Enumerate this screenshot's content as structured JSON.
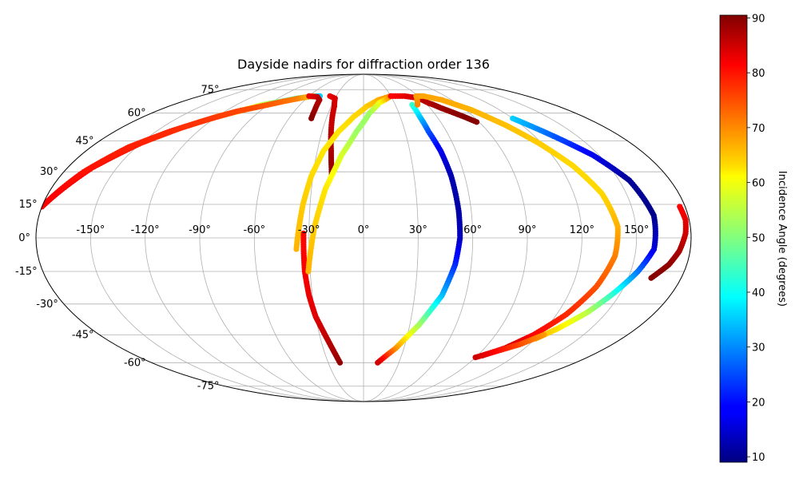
{
  "chart_data": {
    "type": "scatter",
    "projection": "mollweide",
    "title": "Dayside nadirs for diffraction order 136",
    "grid": true,
    "lon_ticks": [
      -150,
      -120,
      -90,
      -60,
      -30,
      0,
      30,
      60,
      90,
      120,
      150
    ],
    "lon_tick_labels": [
      "-150°",
      "-120°",
      "-90°",
      "-60°",
      "-30°",
      "0°",
      "30°",
      "60°",
      "90°",
      "120°",
      "150°"
    ],
    "lat_ticks": [
      75,
      60,
      45,
      30,
      15,
      0,
      -15,
      -30,
      -45,
      -60,
      -75
    ],
    "lat_tick_labels": [
      "75°",
      "60°",
      "45°",
      "30°",
      "15°",
      "0°",
      "-15°",
      "-30°",
      "-45°",
      "-60°",
      "-75°"
    ],
    "colorbar": {
      "label": "Incidence Angle (degrees)",
      "cmap": "jet",
      "vmin": 9,
      "vmax": 90.5,
      "ticks": [
        10,
        20,
        30,
        40,
        50,
        60,
        70,
        80,
        90
      ],
      "tick_labels": [
        "10",
        "20",
        "30",
        "40",
        "50",
        "60",
        "70",
        "80",
        "90"
      ]
    },
    "series": [
      {
        "lon": [
          -180,
          -165,
          -150,
          -135,
          -120,
          -105,
          -95,
          -82,
          -70,
          -60,
          -52,
          -48
        ],
        "lat": [
          14,
          32,
          44,
          52,
          58,
          62,
          65,
          67,
          69,
          70,
          70.5,
          70.5
        ],
        "incidence": [
          82,
          80,
          78,
          76,
          72,
          62,
          55,
          48,
          44,
          40,
          38,
          36
        ]
      },
      {
        "lon": [
          -180,
          -168,
          -155,
          -140,
          -125,
          -110,
          -95,
          -80,
          -68,
          -60,
          -55
        ],
        "lat": [
          14,
          30,
          42,
          50,
          56,
          61,
          64,
          67,
          69,
          70,
          70.5
        ],
        "incidence": [
          81,
          79,
          78,
          77,
          76,
          75,
          74,
          72,
          70,
          66,
          62
        ]
      },
      {
        "lon": [
          -60,
          -50,
          -45,
          -43,
          -42
        ],
        "lat": [
          70.5,
          70,
          68,
          62,
          57
        ],
        "incidence": [
          82,
          84,
          86,
          88,
          90
        ]
      },
      {
        "lon": [
          -37,
          -30,
          -27,
          -24,
          -21,
          -19
        ],
        "lat": [
          70.5,
          69,
          64,
          52,
          40,
          29
        ],
        "incidence": [
          82,
          83,
          84,
          85,
          87,
          89
        ]
      },
      {
        "lon": [
          -20,
          -25,
          -30,
          -32,
          -33,
          -33,
          -33
        ],
        "lat": [
          -60,
          -48,
          -36,
          -26,
          -15,
          -5,
          2
        ],
        "incidence": [
          89,
          86,
          83,
          82,
          81,
          80,
          80
        ]
      },
      {
        "lon": [
          -37,
          -34,
          -31,
          -26,
          -18,
          -8,
          3,
          15,
          30
        ],
        "lat": [
          -5,
          15,
          28,
          40,
          50,
          58,
          64,
          68,
          70.5
        ],
        "incidence": [
          66,
          64,
          63,
          62,
          62,
          63,
          64,
          66,
          70
        ]
      },
      {
        "lon": [
          -31,
          -27,
          -22,
          -14,
          -5,
          5,
          15,
          30
        ],
        "lat": [
          -15,
          5,
          22,
          38,
          50,
          60,
          66,
          70.5
        ],
        "incidence": [
          66,
          64,
          62,
          57,
          52,
          52,
          58,
          70
        ]
      },
      {
        "lon": [
          30,
          45,
          55,
          60,
          63,
          66,
          68,
          70,
          75,
          82,
          88
        ],
        "lat": [
          70.5,
          70.5,
          69.5,
          68,
          66,
          65,
          64,
          63,
          61,
          58,
          55
        ],
        "incidence": [
          80,
          82,
          84,
          86,
          86,
          87,
          88,
          88,
          89,
          90,
          90
        ]
      },
      {
        "lon": [
          46,
          46,
          47,
          50,
          52,
          53,
          53,
          51,
          46,
          36,
          24,
          12
        ],
        "lat": [
          65,
          58,
          50,
          40,
          28,
          12,
          0,
          -12,
          -26,
          -40,
          -52,
          -60
        ],
        "incidence": [
          44,
          36,
          26,
          18,
          13,
          12,
          14,
          22,
          34,
          52,
          68,
          84
        ]
      },
      {
        "lon": [
          51,
          58,
          66,
          80,
          95,
          108,
          118,
          128,
          136,
          140,
          139,
          134,
          126,
          116,
          105,
          94
        ],
        "lat": [
          65,
          70.5,
          70.5,
          68,
          62,
          53,
          44,
          33,
          20,
          5,
          -8,
          -22,
          -35,
          -45,
          -52,
          -56
        ],
        "incidence": [
          70,
          68,
          67,
          67,
          66,
          65,
          64,
          63,
          63,
          66,
          70,
          74,
          77,
          80,
          84,
          88
        ]
      },
      {
        "lon": [
          120,
          134,
          146,
          156,
          161,
          160,
          154,
          146,
          138,
          128,
          120
        ],
        "lat": [
          57,
          47,
          38,
          26,
          10,
          -5,
          -15,
          -25,
          -34,
          -42,
          -47
        ],
        "incidence": [
          36,
          26,
          18,
          11,
          10,
          16,
          28,
          42,
          54,
          62,
          66
        ]
      },
      {
        "lon": [
          123,
          113,
          100,
          90
        ],
        "lat": [
          -45,
          -50,
          -54,
          -57
        ],
        "incidence": [
          68,
          74,
          80,
          84
        ]
      },
      {
        "lon": [
          177,
          178,
          177,
          174,
          170,
          163
        ],
        "lat": [
          14,
          8,
          2,
          -6,
          -12,
          -18
        ],
        "incidence": [
          80,
          82,
          84,
          87,
          89,
          90
        ]
      }
    ]
  }
}
